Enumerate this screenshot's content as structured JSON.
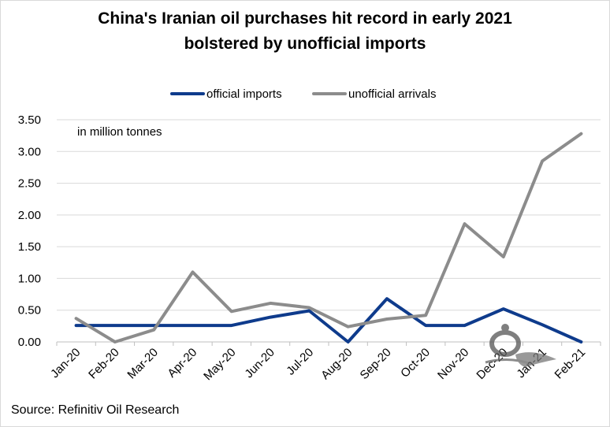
{
  "title": {
    "line1": "China's Iranian oil purchases hit record in early 2021",
    "line2": "bolstered by unofficial imports"
  },
  "source": "Source: Refinitiv Oil Research",
  "unit_note": "in million tonnes",
  "chart_data": {
    "type": "line",
    "title": "China's Iranian oil purchases hit record in early 2021 bolstered by unofficial imports",
    "xlabel": "",
    "ylabel": "",
    "categories": [
      "Jan-20",
      "Feb-20",
      "Mar-20",
      "Apr-20",
      "May-20",
      "Jun-20",
      "Jul-20",
      "Aug-20",
      "Sep-20",
      "Oct-20",
      "Nov-20",
      "Dec-20",
      "Jan-21",
      "Feb-21"
    ],
    "series": [
      {
        "name": "official imports",
        "color": "#0e3b8c",
        "values": [
          0.26,
          0.26,
          0.26,
          0.26,
          0.26,
          0.39,
          0.49,
          0.0,
          0.68,
          0.26,
          0.26,
          0.52,
          0.27,
          0.0
        ]
      },
      {
        "name": "unofficial arrivals",
        "color": "#8c8c8c",
        "values": [
          0.37,
          0.0,
          0.19,
          1.1,
          0.48,
          0.61,
          0.54,
          0.24,
          0.36,
          0.42,
          1.86,
          1.34,
          2.85,
          3.28
        ]
      }
    ],
    "ylim": [
      0,
      3.5
    ],
    "yticks": [
      "0.00",
      "0.50",
      "1.00",
      "1.50",
      "2.00",
      "2.50",
      "3.00",
      "3.50"
    ],
    "grid": true,
    "legend": "top"
  }
}
